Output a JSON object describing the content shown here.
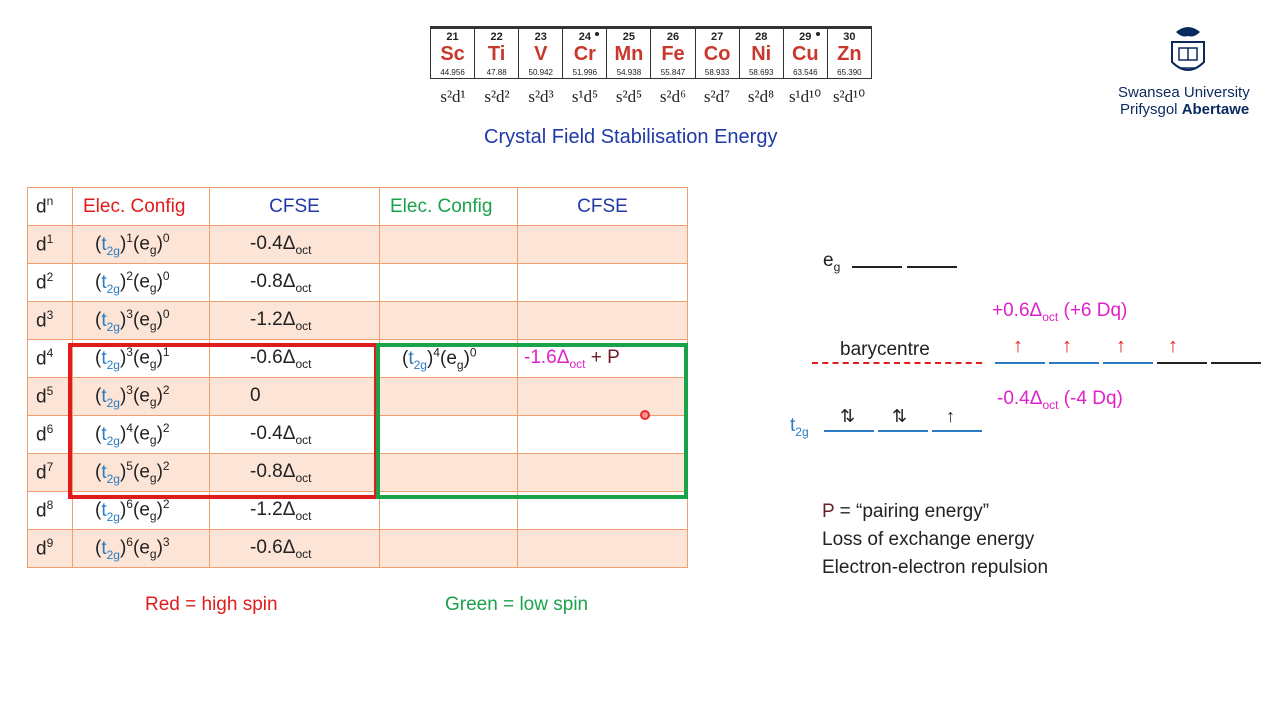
{
  "periodic": [
    {
      "num": "21",
      "sym": "Sc",
      "mass": "44.956",
      "config": "s²d¹"
    },
    {
      "num": "22",
      "sym": "Ti",
      "mass": "47.88",
      "config": "s²d²"
    },
    {
      "num": "23",
      "sym": "V",
      "mass": "50.942",
      "config": "s²d³"
    },
    {
      "num": "24",
      "sym": "Cr",
      "mass": "51.996",
      "config": "s¹d⁵"
    },
    {
      "num": "25",
      "sym": "Mn",
      "mass": "54.938",
      "config": "s²d⁵"
    },
    {
      "num": "26",
      "sym": "Fe",
      "mass": "55.847",
      "config": "s²d⁶"
    },
    {
      "num": "27",
      "sym": "Co",
      "mass": "58.933",
      "config": "s²d⁷"
    },
    {
      "num": "28",
      "sym": "Ni",
      "mass": "58.693",
      "config": "s²d⁸"
    },
    {
      "num": "29",
      "sym": "Cu",
      "mass": "63.546",
      "config": "s¹d¹⁰"
    },
    {
      "num": "30",
      "sym": "Zn",
      "mass": "65.390",
      "config": "s²d¹⁰"
    }
  ],
  "title": "Crystal Field Stabilisation Energy",
  "logo": {
    "line1": "Swansea University",
    "line2": "Prifysgol Abertawe"
  },
  "table": {
    "headers": [
      "d",
      "n",
      "Elec. Config",
      "CFSE",
      "Elec. Config",
      "CFSE"
    ],
    "rows": [
      {
        "d": "d",
        "n": "1",
        "t": "1",
        "e": "0",
        "cfse": "-0.4Δ",
        "sub": "oct"
      },
      {
        "d": "d",
        "n": "2",
        "t": "2",
        "e": "0",
        "cfse": "-0.8Δ",
        "sub": "oct"
      },
      {
        "d": "d",
        "n": "3",
        "t": "3",
        "e": "0",
        "cfse": "-1.2Δ",
        "sub": "oct"
      },
      {
        "d": "d",
        "n": "4",
        "t": "3",
        "e": "1",
        "cfse": "-0.6Δ",
        "sub": "oct"
      },
      {
        "d": "d",
        "n": "5",
        "t": "3",
        "e": "2",
        "cfse": "0",
        "sub": ""
      },
      {
        "d": "d",
        "n": "6",
        "t": "4",
        "e": "2",
        "cfse": "-0.4Δ",
        "sub": "oct"
      },
      {
        "d": "d",
        "n": "7",
        "t": "5",
        "e": "2",
        "cfse": "-0.8Δ",
        "sub": "oct"
      },
      {
        "d": "d",
        "n": "8",
        "t": "6",
        "e": "2",
        "cfse": "-1.2Δ",
        "sub": "oct"
      },
      {
        "d": "d",
        "n": "9",
        "t": "6",
        "e": "3",
        "cfse": "-0.6Δ",
        "sub": "oct"
      }
    ],
    "low_spin_d4": {
      "t": "4",
      "e": "0",
      "cfse": "-1.6Δ",
      "sub": "oct",
      "extra": " + P"
    }
  },
  "labels": {
    "t": "t",
    "t_sub": "2g",
    "e": "e",
    "e_sub": "g"
  },
  "legend": {
    "red": "Red = high spin",
    "green": "Green = low spin"
  },
  "diagram": {
    "eg": "e",
    "eg_sub": "g",
    "t2g": "t",
    "t2g_sub": "2g",
    "barycentre": "barycentre",
    "upper_a": "+0.6Δ",
    "upper_sub": "oct",
    "upper_b": " (+6 Dq)",
    "lower_a": "-0.4Δ",
    "lower_sub": "oct",
    "lower_b": " (-4 Dq)",
    "arrows_up": [
      "↑",
      "↑",
      "↑",
      "↑"
    ],
    "t2g_electrons": [
      "⇅",
      "⇅",
      "↑"
    ]
  },
  "notes": {
    "p": "P",
    "line1": " = “pairing energy”",
    "line2": "Loss of exchange energy",
    "line3": "Electron-electron repulsion"
  },
  "colors": {
    "red": "#e01b1b",
    "green": "#1aa24a",
    "blue": "#1f3aa6",
    "magenta": "#e020c8"
  }
}
